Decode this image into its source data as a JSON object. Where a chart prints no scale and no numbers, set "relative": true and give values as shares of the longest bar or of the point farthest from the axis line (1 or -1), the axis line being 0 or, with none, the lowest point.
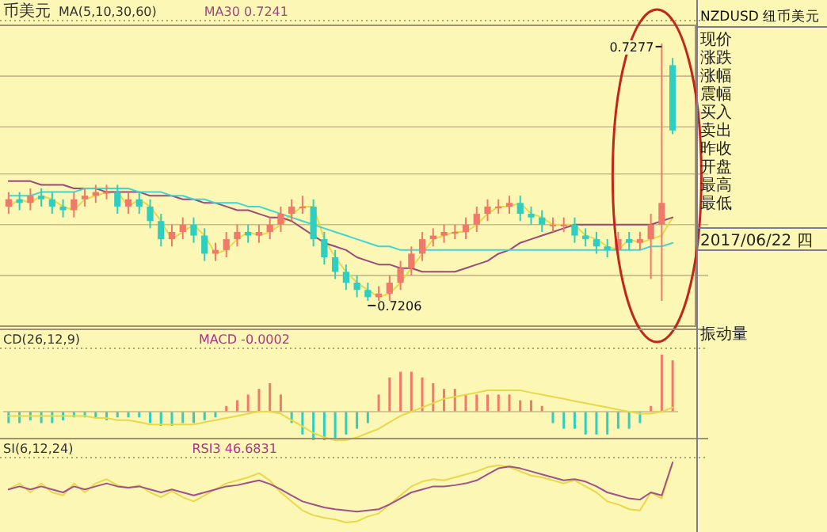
{
  "chart_data": [
    {
      "type": "candlestick",
      "title": "币美元",
      "subtitle": "MA(5,10,30,60)",
      "legend": "top",
      "grid": "y",
      "ylim": [
        0.7199,
        0.7282
      ],
      "yticks": [
        {
          "value": 0.7213,
          "label": null
        },
        {
          "value": 0.7227,
          "label": null
        },
        {
          "value": 0.7241,
          "label": null
        },
        {
          "value": 0.7254,
          "label": null
        },
        {
          "value": 0.7268,
          "label": null
        }
      ],
      "annotations": [
        "0.7206",
        "0.7277"
      ],
      "categories": [
        null,
        null,
        null,
        null,
        null,
        null,
        null,
        null,
        null,
        null,
        null,
        null,
        null,
        null,
        null,
        null,
        null,
        null,
        null,
        null,
        null,
        null,
        null,
        null,
        null,
        null,
        null,
        null,
        null,
        null,
        null,
        null,
        null,
        null,
        null,
        null,
        null,
        null,
        null,
        null,
        null,
        null,
        null,
        null,
        null,
        null,
        null,
        null,
        null,
        null,
        null,
        null,
        null,
        null,
        null,
        null,
        null,
        null,
        null,
        null,
        null,
        null
      ],
      "ohlc": [
        [
          0.7232,
          0.7236,
          0.723,
          0.7234
        ],
        [
          0.7234,
          0.7236,
          0.7231,
          0.7233
        ],
        [
          0.7233,
          0.7237,
          0.7231,
          0.7235
        ],
        [
          0.7235,
          0.7237,
          0.7232,
          0.7234
        ],
        [
          0.7234,
          0.7236,
          0.723,
          0.7232
        ],
        [
          0.7232,
          0.7234,
          0.7229,
          0.7231
        ],
        [
          0.7231,
          0.7236,
          0.7229,
          0.7234
        ],
        [
          0.7234,
          0.7237,
          0.7232,
          0.7235
        ],
        [
          0.7235,
          0.7238,
          0.7233,
          0.7236
        ],
        [
          0.7236,
          0.7238,
          0.7234,
          0.7236
        ],
        [
          0.7236,
          0.7238,
          0.723,
          0.7232
        ],
        [
          0.7232,
          0.7236,
          0.723,
          0.7234
        ],
        [
          0.7234,
          0.7236,
          0.723,
          0.7232
        ],
        [
          0.7232,
          0.7234,
          0.7226,
          0.7228
        ],
        [
          0.7228,
          0.723,
          0.7221,
          0.7223
        ],
        [
          0.7223,
          0.7227,
          0.7221,
          0.7225
        ],
        [
          0.7225,
          0.7229,
          0.7223,
          0.7227
        ],
        [
          0.7227,
          0.7229,
          0.7222,
          0.7224
        ],
        [
          0.7224,
          0.7226,
          0.7217,
          0.7219
        ],
        [
          0.7219,
          0.7222,
          0.7217,
          0.722
        ],
        [
          0.722,
          0.7225,
          0.7218,
          0.7223
        ],
        [
          0.7223,
          0.7227,
          0.7221,
          0.7225
        ],
        [
          0.7225,
          0.7227,
          0.7222,
          0.7224
        ],
        [
          0.7224,
          0.7227,
          0.7222,
          0.7225
        ],
        [
          0.7225,
          0.7229,
          0.7223,
          0.7227
        ],
        [
          0.7227,
          0.7232,
          0.7225,
          0.723
        ],
        [
          0.723,
          0.7234,
          0.7228,
          0.7232
        ],
        [
          0.7232,
          0.7235,
          0.723,
          0.7232
        ],
        [
          0.7232,
          0.7234,
          0.7221,
          0.7223
        ],
        [
          0.7223,
          0.7225,
          0.7216,
          0.7218
        ],
        [
          0.7218,
          0.722,
          0.7212,
          0.7214
        ],
        [
          0.7214,
          0.7216,
          0.7209,
          0.7211
        ],
        [
          0.7211,
          0.7213,
          0.7207,
          0.7209
        ],
        [
          0.7209,
          0.7211,
          0.7206,
          0.7207
        ],
        [
          0.7207,
          0.721,
          0.7206,
          0.7208
        ],
        [
          0.7208,
          0.7213,
          0.7206,
          0.7211
        ],
        [
          0.7211,
          0.7217,
          0.7209,
          0.7215
        ],
        [
          0.7215,
          0.7221,
          0.7213,
          0.7219
        ],
        [
          0.7219,
          0.7225,
          0.7217,
          0.7223
        ],
        [
          0.7223,
          0.7226,
          0.7221,
          0.7224
        ],
        [
          0.7224,
          0.7227,
          0.7222,
          0.7225
        ],
        [
          0.7225,
          0.7227,
          0.7223,
          0.7225
        ],
        [
          0.7225,
          0.7229,
          0.7223,
          0.7227
        ],
        [
          0.7227,
          0.7232,
          0.7225,
          0.723
        ],
        [
          0.723,
          0.7234,
          0.7228,
          0.7232
        ],
        [
          0.7232,
          0.7234,
          0.723,
          0.7232
        ],
        [
          0.7232,
          0.7235,
          0.723,
          0.7233
        ],
        [
          0.7233,
          0.7235,
          0.7228,
          0.723
        ],
        [
          0.723,
          0.7232,
          0.7227,
          0.7229
        ],
        [
          0.7229,
          0.7231,
          0.7225,
          0.7227
        ],
        [
          0.7227,
          0.7229,
          0.7225,
          0.7227
        ],
        [
          0.7227,
          0.7229,
          0.7225,
          0.7227
        ],
        [
          0.7227,
          0.7229,
          0.7222,
          0.7224
        ],
        [
          0.7224,
          0.7226,
          0.7221,
          0.7223
        ],
        [
          0.7223,
          0.7225,
          0.7219,
          0.7221
        ],
        [
          0.7221,
          0.7223,
          0.7218,
          0.722
        ],
        [
          0.722,
          0.7225,
          0.7218,
          0.7223
        ],
        [
          0.7223,
          0.7225,
          0.722,
          0.7222
        ],
        [
          0.7222,
          0.7225,
          0.722,
          0.7223
        ],
        [
          0.7223,
          0.723,
          0.7212,
          0.7227
        ],
        [
          0.7227,
          0.7277,
          0.7206,
          0.7233
        ],
        [
          0.7271,
          0.7273,
          0.7252,
          0.7253
        ]
      ],
      "colors": [
        "#f07a6a",
        "#2ecfc0",
        "#f07a6a",
        "#2ecfc0",
        "#2ecfc0",
        "#2ecfc0",
        "#f07a6a",
        "#f07a6a",
        "#f07a6a",
        "#f07a6a",
        "#2ecfc0",
        "#f07a6a",
        "#2ecfc0",
        "#2ecfc0",
        "#2ecfc0",
        "#f07a6a",
        "#f07a6a",
        "#2ecfc0",
        "#2ecfc0",
        "#f07a6a",
        "#f07a6a",
        "#f07a6a",
        "#2ecfc0",
        "#f07a6a",
        "#f07a6a",
        "#f07a6a",
        "#f07a6a",
        "#f07a6a",
        "#2ecfc0",
        "#2ecfc0",
        "#2ecfc0",
        "#2ecfc0",
        "#2ecfc0",
        "#2ecfc0",
        "#f07a6a",
        "#f07a6a",
        "#f07a6a",
        "#f07a6a",
        "#f07a6a",
        "#f07a6a",
        "#f07a6a",
        "#f07a6a",
        "#f07a6a",
        "#f07a6a",
        "#f07a6a",
        "#f07a6a",
        "#f07a6a",
        "#2ecfc0",
        "#2ecfc0",
        "#2ecfc0",
        "#f07a6a",
        "#f07a6a",
        "#2ecfc0",
        "#2ecfc0",
        "#2ecfc0",
        "#2ecfc0",
        "#f07a6a",
        "#2ecfc0",
        "#f07a6a",
        "#f07a6a",
        "#f07a6a",
        "#2ecfc0"
      ],
      "series": [
        {
          "type": "line",
          "color": "#e8d84a",
          "values": [
            0.7232,
            0.7234,
            0.7233,
            0.7235,
            0.7234,
            0.7232,
            0.7231,
            0.7234,
            0.7235,
            0.7236,
            0.7236,
            0.7232,
            0.7234,
            0.7232,
            0.7228,
            0.7223,
            0.7225,
            0.7227,
            0.7224,
            0.7219,
            0.722,
            0.7223,
            0.7225,
            0.7224,
            0.7225,
            0.7227,
            0.723,
            0.7232,
            0.7232,
            0.7223,
            0.7218,
            0.7214,
            0.7211,
            0.7209,
            0.7207,
            0.7208,
            0.7211,
            0.7215,
            0.7219,
            0.7223,
            0.7224,
            0.7225,
            0.7225,
            0.7227,
            0.723,
            0.7232,
            0.7232,
            0.7233,
            0.723,
            0.7229,
            0.7227,
            0.7227,
            0.7227,
            0.7224,
            0.7223,
            0.7221,
            0.722,
            0.7223,
            0.7222,
            0.7223,
            0.7224,
            0.7229
          ]
        },
        {
          "type": "line",
          "name": "MA30 0.7241",
          "color": "#9a4a7a",
          "values": [
            0.7239,
            0.7239,
            0.7239,
            0.7238,
            0.7238,
            0.7238,
            0.7237,
            0.7237,
            0.7237,
            0.7236,
            0.7236,
            0.7236,
            0.7236,
            0.7235,
            0.7235,
            0.7235,
            0.7234,
            0.7234,
            0.7233,
            0.7233,
            0.7232,
            0.7231,
            0.7231,
            0.723,
            0.7229,
            0.7229,
            0.7228,
            0.7226,
            0.7224,
            0.7222,
            0.7221,
            0.722,
            0.7218,
            0.7217,
            0.7216,
            0.7216,
            0.7215,
            0.7215,
            0.7214,
            0.7214,
            0.7214,
            0.7214,
            0.7215,
            0.7216,
            0.7217,
            0.7219,
            0.722,
            0.7222,
            0.7223,
            0.7224,
            0.7225,
            0.7226,
            0.7227,
            0.7227,
            0.7227,
            0.7227,
            0.7227,
            0.7227,
            0.7227,
            0.7227,
            0.7228,
            0.7229
          ]
        },
        {
          "type": "line",
          "color": "#3fd6d6",
          "values": [
            0.7235,
            0.7235,
            0.7235,
            0.7236,
            0.7236,
            0.7236,
            0.7236,
            0.7237,
            0.7237,
            0.7237,
            0.7237,
            0.7237,
            0.7236,
            0.7236,
            0.7236,
            0.7235,
            0.7235,
            0.7234,
            0.7234,
            0.7233,
            0.7233,
            0.7233,
            0.7232,
            0.7232,
            0.7231,
            0.723,
            0.7229,
            0.7228,
            0.7227,
            0.7226,
            0.7225,
            0.7224,
            0.7223,
            0.7222,
            0.7221,
            0.7221,
            0.722,
            0.722,
            0.722,
            0.722,
            0.722,
            0.722,
            0.722,
            0.722,
            0.722,
            0.722,
            0.722,
            0.722,
            0.722,
            0.722,
            0.722,
            0.722,
            0.722,
            0.722,
            0.722,
            0.722,
            0.722,
            0.722,
            0.722,
            0.7221,
            0.7221,
            0.7222
          ]
        }
      ]
    },
    {
      "type": "bar",
      "title": "CD(26,12,9)",
      "annotations": [
        "MACD -0.0002"
      ],
      "relative": true,
      "categories": [
        null,
        null,
        null,
        null,
        null,
        null,
        null,
        null,
        null,
        null,
        null,
        null,
        null,
        null,
        null,
        null,
        null,
        null,
        null,
        null,
        null,
        null,
        null,
        null,
        null,
        null,
        null,
        null,
        null,
        null,
        null,
        null,
        null,
        null,
        null,
        null,
        null,
        null,
        null,
        null,
        null,
        null,
        null,
        null,
        null,
        null,
        null,
        null,
        null,
        null,
        null,
        null,
        null,
        null,
        null,
        null,
        null,
        null,
        null,
        null,
        null,
        null
      ],
      "series": [
        {
          "type": "bar",
          "colors": [
            "#2ecfc0",
            "#2ecfc0",
            "#2ecfc0",
            "#2ecfc0",
            "#2ecfc0",
            "#2ecfc0",
            "#2ecfc0",
            "#2ecfc0",
            "#2ecfc0",
            "#2ecfc0",
            "#2ecfc0",
            "#2ecfc0",
            "#2ecfc0",
            "#2ecfc0",
            "#2ecfc0",
            "#2ecfc0",
            "#2ecfc0",
            "#2ecfc0",
            "#2ecfc0",
            "#2ecfc0",
            "#f07a6a",
            "#f07a6a",
            "#f07a6a",
            "#f07a6a",
            "#f07a6a",
            "#f07a6a",
            "#2ecfc0",
            "#2ecfc0",
            "#2ecfc0",
            "#2ecfc0",
            "#2ecfc0",
            "#2ecfc0",
            "#2ecfc0",
            "#2ecfc0",
            "#f07a6a",
            "#f07a6a",
            "#f07a6a",
            "#f07a6a",
            "#f07a6a",
            "#f07a6a",
            "#f07a6a",
            "#f07a6a",
            "#f07a6a",
            "#f07a6a",
            "#f07a6a",
            "#f07a6a",
            "#f07a6a",
            "#f07a6a",
            "#f07a6a",
            "#f07a6a",
            "#2ecfc0",
            "#2ecfc0",
            "#2ecfc0",
            "#2ecfc0",
            "#2ecfc0",
            "#2ecfc0",
            "#2ecfc0",
            "#2ecfc0",
            "#2ecfc0",
            "#f07a6a",
            "#f07a6a",
            "#f07a6a"
          ],
          "values": [
            -0.2,
            -0.2,
            -0.15,
            -0.2,
            -0.2,
            -0.15,
            -0.1,
            -0.1,
            -0.1,
            -0.15,
            -0.1,
            -0.1,
            -0.1,
            -0.2,
            -0.25,
            -0.25,
            -0.2,
            -0.2,
            -0.15,
            -0.1,
            0.1,
            0.2,
            0.3,
            0.4,
            0.5,
            0.3,
            -0.2,
            -0.4,
            -0.5,
            -0.5,
            -0.5,
            -0.4,
            -0.3,
            -0.2,
            0.3,
            0.6,
            0.7,
            0.7,
            0.6,
            0.5,
            0.4,
            0.4,
            0.3,
            0.3,
            0.3,
            0.3,
            0.3,
            0.2,
            0.2,
            0.1,
            -0.2,
            -0.3,
            -0.3,
            -0.4,
            -0.4,
            -0.4,
            -0.3,
            -0.3,
            -0.2,
            0.1,
            1,
            0.9
          ]
        }
      ]
    },
    {
      "type": "line",
      "relative": true,
      "ref_lines": [
        {
          "axis": "y",
          "value": 0,
          "color": "#c9b98a"
        }
      ],
      "categories": [
        null,
        null,
        null,
        null,
        null,
        null,
        null,
        null,
        null,
        null,
        null,
        null,
        null,
        null,
        null,
        null,
        null,
        null,
        null,
        null,
        null,
        null,
        null,
        null,
        null,
        null,
        null,
        null,
        null,
        null,
        null,
        null,
        null,
        null,
        null,
        null,
        null,
        null,
        null,
        null,
        null,
        null,
        null,
        null,
        null,
        null,
        null,
        null,
        null,
        null,
        null,
        null,
        null,
        null,
        null,
        null,
        null,
        null,
        null,
        null,
        null,
        null
      ],
      "series": [
        {
          "type": "line",
          "color": "#e8d84a",
          "values": [
            -0.15,
            -0.15,
            -0.15,
            -0.15,
            -0.15,
            -0.15,
            -0.15,
            -0.15,
            -0.22,
            -0.22,
            -0.3,
            -0.3,
            -0.37,
            -0.45,
            -0.45,
            -0.45,
            -0.45,
            -0.45,
            -0.37,
            -0.3,
            -0.22,
            -0.15,
            -0.07,
            0,
            0,
            -0.07,
            -0.3,
            -0.52,
            -0.75,
            -0.9,
            -1,
            -1,
            -0.9,
            -0.75,
            -0.6,
            -0.37,
            -0.15,
            0,
            0.15,
            0.3,
            0.45,
            0.52,
            0.6,
            0.67,
            0.75,
            0.75,
            0.75,
            0.75,
            0.67,
            0.6,
            0.52,
            0.45,
            0.37,
            0.3,
            0.22,
            0.15,
            0.07,
            0,
            -0.07,
            -0.07,
            0,
            0.15
          ]
        }
      ]
    },
    {
      "type": "line",
      "title": "SI(6,12,24)",
      "annotations": [
        "RSI3 46.6831"
      ],
      "relative": true,
      "categories": [
        null,
        null,
        null,
        null,
        null,
        null,
        null,
        null,
        null,
        null,
        null,
        null,
        null,
        null,
        null,
        null,
        null,
        null,
        null,
        null,
        null,
        null,
        null,
        null,
        null,
        null,
        null,
        null,
        null,
        null,
        null,
        null,
        null,
        null,
        null,
        null,
        null,
        null,
        null,
        null,
        null,
        null,
        null,
        null,
        null,
        null,
        null,
        null,
        null,
        null,
        null,
        null,
        null,
        null,
        null,
        null,
        null,
        null,
        null,
        null,
        null,
        null
      ],
      "series": [
        {
          "type": "line",
          "color": "#e8d84a",
          "values": [
            0.55,
            0.65,
            0.5,
            0.65,
            0.5,
            0.45,
            0.65,
            0.5,
            0.65,
            0.72,
            0.62,
            0.58,
            0.62,
            0.5,
            0.42,
            0.52,
            0.42,
            0.35,
            0.45,
            0.55,
            0.65,
            0.7,
            0.75,
            0.82,
            0.7,
            0.5,
            0.35,
            0.2,
            0.12,
            0.08,
            0.05,
            0,
            0.02,
            0.1,
            0.15,
            0.3,
            0.45,
            0.6,
            0.68,
            0.72,
            0.7,
            0.75,
            0.8,
            0.85,
            0.92,
            0.95,
            0.92,
            0.85,
            0.78,
            0.75,
            0.7,
            0.65,
            0.7,
            0.6,
            0.5,
            0.35,
            0.3,
            0.22,
            0.2,
            0.5,
            0.4,
            0.98
          ]
        },
        {
          "type": "line",
          "color": "#a0508a",
          "values": [
            0.55,
            0.6,
            0.55,
            0.6,
            0.55,
            0.5,
            0.6,
            0.55,
            0.6,
            0.65,
            0.6,
            0.58,
            0.6,
            0.55,
            0.5,
            0.55,
            0.5,
            0.45,
            0.5,
            0.55,
            0.6,
            0.62,
            0.66,
            0.7,
            0.64,
            0.55,
            0.45,
            0.35,
            0.3,
            0.25,
            0.22,
            0.2,
            0.18,
            0.2,
            0.22,
            0.3,
            0.4,
            0.5,
            0.55,
            0.6,
            0.6,
            0.62,
            0.65,
            0.7,
            0.8,
            0.9,
            0.93,
            0.9,
            0.85,
            0.8,
            0.75,
            0.7,
            0.72,
            0.68,
            0.6,
            0.5,
            0.45,
            0.4,
            0.38,
            0.5,
            0.45,
            1.0
          ]
        }
      ]
    },
    {
      "type": "other",
      "title": "NZDUSD 纽币美元",
      "annotations": [
        "现价",
        "涨跌",
        "涨幅",
        "震幅",
        "买入",
        "卖出",
        "昨收",
        "开盘",
        "最高",
        "最低",
        "2017/06/22 四",
        "振动量"
      ]
    }
  ]
}
